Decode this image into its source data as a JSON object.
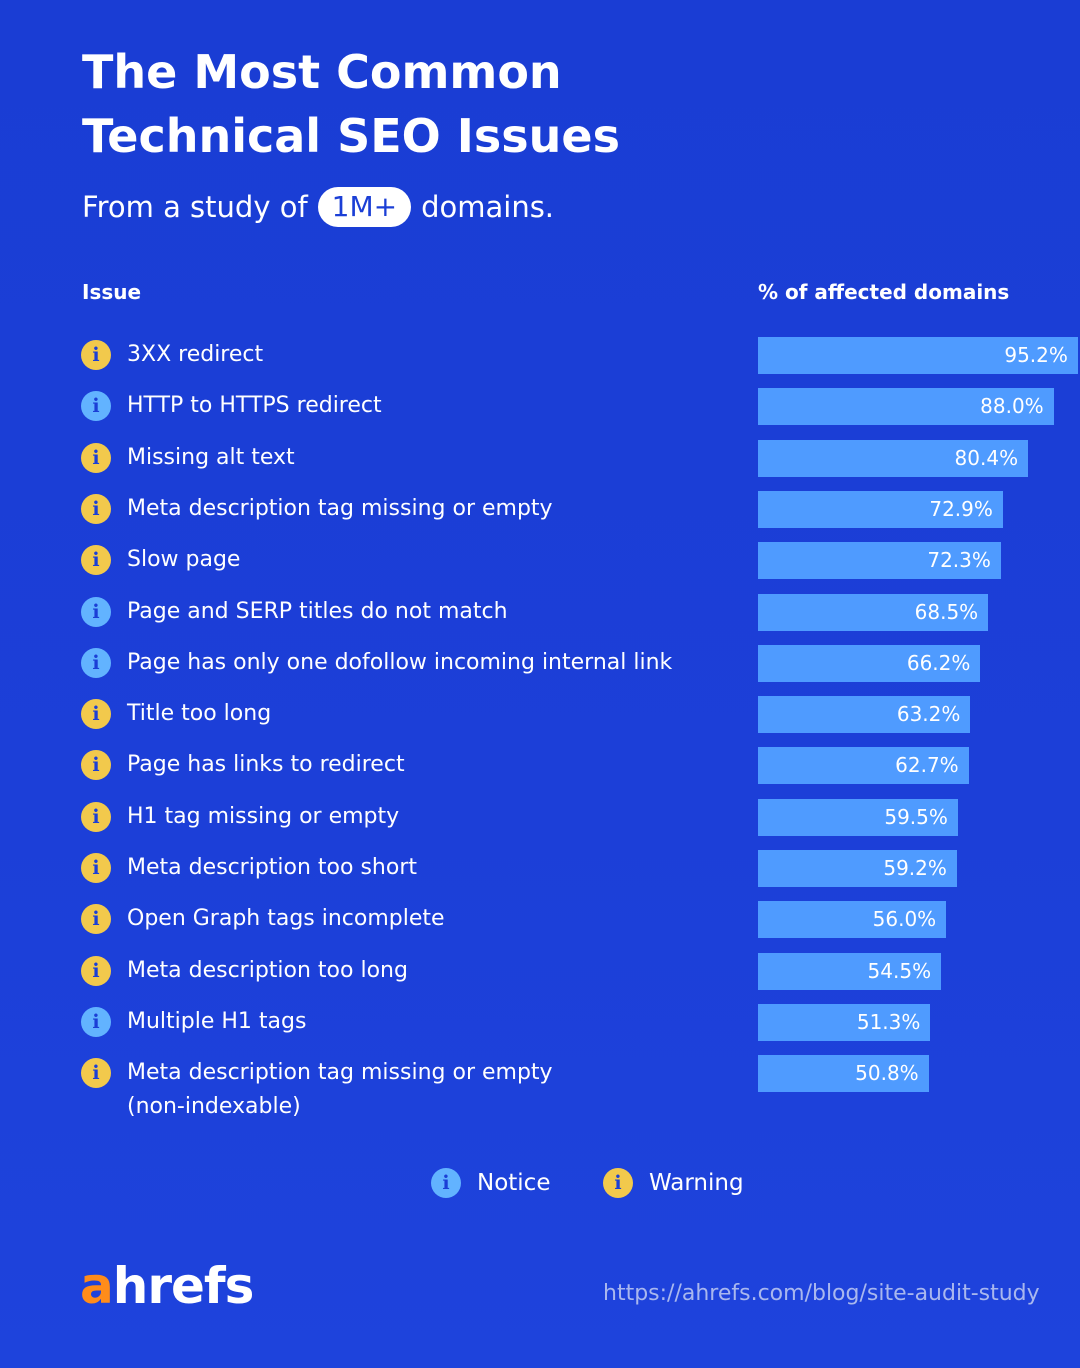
{
  "header": {
    "title_line1": "The Most Common",
    "title_line2": "Technical SEO Issues",
    "subtitle_before": "From a study of",
    "subtitle_pill": "1M+",
    "subtitle_after": "domains."
  },
  "columns": {
    "issue": "Issue",
    "percent": "% of affected domains"
  },
  "chart_data": {
    "type": "bar",
    "orientation": "horizontal",
    "xlim": [
      0,
      100
    ],
    "unit": "%",
    "grid": false,
    "legend_placement": "bottom-center",
    "categories": [
      "3XX redirect",
      "HTTP to HTTPS redirect",
      "Missing alt text",
      "Meta description tag missing or empty",
      "Slow page",
      "Page and SERP titles do not match",
      "Page has only one dofollow incoming internal link",
      "Title too long",
      "Page has links to redirect",
      "H1 tag missing or empty",
      "Meta description too short",
      "Open Graph tags incomplete",
      "Meta description too long",
      "Multiple H1 tags",
      "Meta description tag missing or empty (non-indexable)"
    ],
    "label_lines": [
      [
        "3XX redirect"
      ],
      [
        "HTTP to HTTPS redirect"
      ],
      [
        "Missing alt text"
      ],
      [
        "Meta description tag missing or empty"
      ],
      [
        "Slow page"
      ],
      [
        "Page and SERP titles do not match"
      ],
      [
        "Page has only one dofollow incoming internal link"
      ],
      [
        "Title too long"
      ],
      [
        "Page has links to redirect"
      ],
      [
        "H1 tag missing or empty"
      ],
      [
        "Meta description too short"
      ],
      [
        "Open Graph tags incomplete"
      ],
      [
        "Meta description too long"
      ],
      [
        "Multiple H1 tags"
      ],
      [
        "Meta description tag missing or empty",
        "(non-indexable)"
      ]
    ],
    "values": [
      95.2,
      88.0,
      80.4,
      72.9,
      72.3,
      68.5,
      66.2,
      63.2,
      62.7,
      59.5,
      59.2,
      56.0,
      54.5,
      51.3,
      50.8
    ],
    "value_labels": [
      "95.2%",
      "88.0%",
      "80.4%",
      "72.9%",
      "72.3%",
      "68.5%",
      "66.2%",
      "63.2%",
      "62.7%",
      "59.5%",
      "59.2%",
      "56.0%",
      "54.5%",
      "51.3%",
      "50.8%"
    ],
    "types": [
      "warning",
      "notice",
      "warning",
      "warning",
      "warning",
      "notice",
      "notice",
      "warning",
      "warning",
      "warning",
      "warning",
      "warning",
      "warning",
      "notice",
      "warning"
    ]
  },
  "legend": {
    "notice_label": "Notice",
    "warning_label": "Warning",
    "icon_glyph": "i"
  },
  "footer": {
    "logo_a": "a",
    "logo_rest": "hrefs",
    "url": "https://ahrefs.com/blog/site-audit-study"
  },
  "colors": {
    "background": "#1b3fd6",
    "bar": "#4f9bff",
    "warning": "#f2c94c",
    "notice": "#62b3ff",
    "logo_accent": "#ff8c1a"
  },
  "icons": {
    "warning": "warning-info-icon",
    "notice": "notice-info-icon"
  }
}
